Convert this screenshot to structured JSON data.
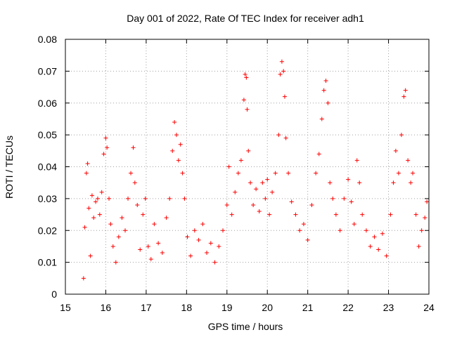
{
  "chart_data": {
    "type": "scatter",
    "title": "Day 001 of 2022, Rate Of TEC Index for receiver adh1",
    "xlabel": "GPS time / hours",
    "ylabel": "ROTI / TECUs",
    "xlim": [
      15,
      24
    ],
    "ylim": [
      0,
      0.08
    ],
    "x_ticks": [
      "15",
      "16",
      "17",
      "18",
      "19",
      "20",
      "21",
      "22",
      "23",
      "24"
    ],
    "y_ticks": [
      "0",
      "0.01",
      "0.02",
      "0.03",
      "0.04",
      "0.05",
      "0.06",
      "0.07",
      "0.08"
    ],
    "grid": true,
    "marker": "+",
    "color": "#ff0000",
    "series": [
      {
        "name": "ROTI",
        "points": [
          [
            15.45,
            0.005
          ],
          [
            15.48,
            0.021
          ],
          [
            15.52,
            0.038
          ],
          [
            15.55,
            0.041
          ],
          [
            15.58,
            0.027
          ],
          [
            15.62,
            0.012
          ],
          [
            15.66,
            0.031
          ],
          [
            15.7,
            0.024
          ],
          [
            15.75,
            0.029
          ],
          [
            15.8,
            0.03
          ],
          [
            15.85,
            0.025
          ],
          [
            15.9,
            0.032
          ],
          [
            15.95,
            0.044
          ],
          [
            16.0,
            0.049
          ],
          [
            16.03,
            0.046
          ],
          [
            16.08,
            0.03
          ],
          [
            16.12,
            0.022
          ],
          [
            16.18,
            0.015
          ],
          [
            16.25,
            0.01
          ],
          [
            16.32,
            0.018
          ],
          [
            16.4,
            0.024
          ],
          [
            16.48,
            0.02
          ],
          [
            16.55,
            0.03
          ],
          [
            16.62,
            0.038
          ],
          [
            16.68,
            0.046
          ],
          [
            16.72,
            0.035
          ],
          [
            16.78,
            0.028
          ],
          [
            16.85,
            0.014
          ],
          [
            16.92,
            0.025
          ],
          [
            16.98,
            0.03
          ],
          [
            17.05,
            0.015
          ],
          [
            17.12,
            0.011
          ],
          [
            17.2,
            0.022
          ],
          [
            17.3,
            0.016
          ],
          [
            17.4,
            0.013
          ],
          [
            17.5,
            0.024
          ],
          [
            17.58,
            0.03
          ],
          [
            17.65,
            0.045
          ],
          [
            17.7,
            0.054
          ],
          [
            17.75,
            0.05
          ],
          [
            17.8,
            0.042
          ],
          [
            17.85,
            0.047
          ],
          [
            17.9,
            0.038
          ],
          [
            17.95,
            0.03
          ],
          [
            18.02,
            0.018
          ],
          [
            18.1,
            0.012
          ],
          [
            18.2,
            0.02
          ],
          [
            18.3,
            0.017
          ],
          [
            18.4,
            0.022
          ],
          [
            18.5,
            0.013
          ],
          [
            18.6,
            0.016
          ],
          [
            18.7,
            0.01
          ],
          [
            18.8,
            0.015
          ],
          [
            18.9,
            0.02
          ],
          [
            19.0,
            0.028
          ],
          [
            19.05,
            0.04
          ],
          [
            19.12,
            0.025
          ],
          [
            19.2,
            0.032
          ],
          [
            19.28,
            0.038
          ],
          [
            19.35,
            0.042
          ],
          [
            19.42,
            0.061
          ],
          [
            19.45,
            0.069
          ],
          [
            19.48,
            0.068
          ],
          [
            19.5,
            0.058
          ],
          [
            19.53,
            0.045
          ],
          [
            19.58,
            0.035
          ],
          [
            19.65,
            0.028
          ],
          [
            19.72,
            0.033
          ],
          [
            19.8,
            0.026
          ],
          [
            19.88,
            0.035
          ],
          [
            19.95,
            0.03
          ],
          [
            20.0,
            0.036
          ],
          [
            20.05,
            0.025
          ],
          [
            20.12,
            0.032
          ],
          [
            20.2,
            0.038
          ],
          [
            20.28,
            0.05
          ],
          [
            20.32,
            0.069
          ],
          [
            20.36,
            0.073
          ],
          [
            20.4,
            0.07
          ],
          [
            20.43,
            0.062
          ],
          [
            20.46,
            0.049
          ],
          [
            20.52,
            0.038
          ],
          [
            20.6,
            0.029
          ],
          [
            20.7,
            0.025
          ],
          [
            20.8,
            0.02
          ],
          [
            20.9,
            0.022
          ],
          [
            21.0,
            0.017
          ],
          [
            21.1,
            0.028
          ],
          [
            21.2,
            0.038
          ],
          [
            21.28,
            0.044
          ],
          [
            21.35,
            0.055
          ],
          [
            21.4,
            0.064
          ],
          [
            21.45,
            0.067
          ],
          [
            21.5,
            0.06
          ],
          [
            21.55,
            0.035
          ],
          [
            21.62,
            0.03
          ],
          [
            21.7,
            0.025
          ],
          [
            21.8,
            0.02
          ],
          [
            21.9,
            0.03
          ],
          [
            22.0,
            0.036
          ],
          [
            22.08,
            0.029
          ],
          [
            22.15,
            0.022
          ],
          [
            22.22,
            0.042
          ],
          [
            22.28,
            0.035
          ],
          [
            22.35,
            0.025
          ],
          [
            22.45,
            0.02
          ],
          [
            22.55,
            0.015
          ],
          [
            22.65,
            0.018
          ],
          [
            22.75,
            0.014
          ],
          [
            22.85,
            0.019
          ],
          [
            22.95,
            0.012
          ],
          [
            23.05,
            0.025
          ],
          [
            23.12,
            0.035
          ],
          [
            23.18,
            0.045
          ],
          [
            23.25,
            0.038
          ],
          [
            23.32,
            0.05
          ],
          [
            23.38,
            0.062
          ],
          [
            23.42,
            0.064
          ],
          [
            23.48,
            0.042
          ],
          [
            23.55,
            0.035
          ],
          [
            23.6,
            0.038
          ],
          [
            23.68,
            0.025
          ],
          [
            23.75,
            0.015
          ],
          [
            23.82,
            0.02
          ],
          [
            23.9,
            0.024
          ],
          [
            23.95,
            0.029
          ]
        ]
      }
    ]
  }
}
